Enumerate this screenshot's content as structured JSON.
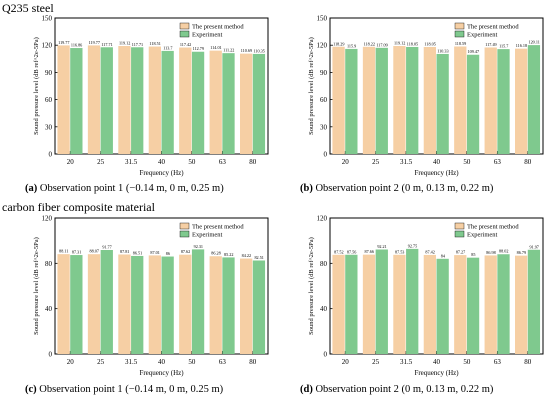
{
  "headings": {
    "top": "Q235 steel",
    "bottom": "carbon fiber composite material"
  },
  "captions": [
    {
      "letter": "(a)",
      "text": " Observation point 1 (−0.14 m, 0 m, 0.25 m)"
    },
    {
      "letter": "(b)",
      "text": " Observation point 2 (0 m, 0.13 m, 0.22 m)"
    },
    {
      "letter": "(c)",
      "text": " Observation point 1 (−0.14 m, 0 m, 0.25 m)"
    },
    {
      "letter": "(d)",
      "text": " Observation point 2 (0 m, 0.13 m, 0.22 m)"
    }
  ],
  "colors": {
    "present": "#F6CFA4",
    "experiment": "#7FC98E",
    "frame": "#000000"
  },
  "chart_data": [
    {
      "type": "bar",
      "categories": [
        "20",
        "25",
        "31.5",
        "40",
        "50",
        "63",
        "80"
      ],
      "series": [
        {
          "name": "The present method",
          "values": [
            119.77,
            119.77,
            119.12,
            118.51,
            117.42,
            114.01,
            110.69
          ],
          "labels": [
            "119.77",
            "119.77",
            "119.12",
            "118.51",
            "117.42",
            "114.01",
            "110.69"
          ]
        },
        {
          "name": "Experiment",
          "values": [
            116.86,
            117.71,
            117.71,
            113.7,
            112.79,
            111.22,
            110.35
          ],
          "labels": [
            "116.86",
            "117.71",
            "117.71",
            "113.7",
            "112.79",
            "111.22",
            "110.35"
          ]
        }
      ],
      "xlabel": "Frequency (Hz)",
      "ylabel": "Sound pressure level (dB ref^2e-5Pa)",
      "ylim": [
        0,
        150
      ],
      "yticks": [
        0,
        30,
        60,
        90,
        120,
        150
      ],
      "legend": "top-right"
    },
    {
      "type": "bar",
      "categories": [
        "20",
        "25",
        "31.5",
        "40",
        "50",
        "63",
        "80"
      ],
      "series": [
        {
          "name": "The present method",
          "values": [
            118.29,
            118.22,
            119.12,
            118.05,
            118.59,
            117.49,
            116.18
          ],
          "labels": [
            "118.29",
            "118.22",
            "119.12",
            "118.05",
            "118.59",
            "117.49",
            "116.18"
          ]
        },
        {
          "name": "Experiment",
          "values": [
            115.9,
            117.09,
            118.05,
            110.33,
            109.47,
            115.7,
            120.11
          ],
          "labels": [
            "115.9",
            "117.09",
            "118.05",
            "110.33",
            "109.47",
            "115.7",
            "120.11"
          ]
        }
      ],
      "xlabel": "Frequency (Hz)",
      "ylabel": "Sound pressure level (dB ref^2e-5Pa)",
      "ylim": [
        0,
        150
      ],
      "yticks": [
        0,
        30,
        60,
        90,
        120,
        150
      ],
      "legend": "top-right"
    },
    {
      "type": "bar",
      "categories": [
        "20",
        "25",
        "31.5",
        "40",
        "50",
        "63",
        "80"
      ],
      "series": [
        {
          "name": "The present method",
          "values": [
            88.11,
            88.07,
            87.81,
            87.01,
            87.62,
            86.28,
            84.22
          ],
          "labels": [
            "88.11",
            "88.07",
            "87.81",
            "87.01",
            "87.62",
            "86.28",
            "84.22"
          ]
        },
        {
          "name": "Experiment",
          "values": [
            87.31,
            91.77,
            86.51,
            86.0,
            92.31,
            85.22,
            82.51
          ],
          "labels": [
            "87.31",
            "91.77",
            "86.51",
            "86",
            "92.31",
            "85.22",
            "82.51"
          ]
        }
      ],
      "xlabel": "Frequency (Hz)",
      "ylabel": "Sound pressure level (dB ref^2e-5Pa)",
      "ylim": [
        0,
        120
      ],
      "yticks": [
        0,
        40,
        80,
        120
      ],
      "legend": "top-right"
    },
    {
      "type": "bar",
      "categories": [
        "20",
        "25",
        "31.5",
        "40",
        "50",
        "63",
        "80"
      ],
      "series": [
        {
          "name": "The present method",
          "values": [
            87.52,
            87.66,
            87.53,
            87.42,
            87.27,
            86.98,
            86.79
          ],
          "labels": [
            "87.52",
            "87.66",
            "87.53",
            "87.42",
            "87.27",
            "86.98",
            "86.79"
          ]
        },
        {
          "name": "Experiment",
          "values": [
            87.56,
            92.21,
            92.75,
            84.0,
            85.0,
            88.02,
            91.97
          ],
          "labels": [
            "87.56",
            "92.21",
            "92.75",
            "84",
            "85",
            "88.02",
            "91.97"
          ]
        }
      ],
      "xlabel": "Frequency (Hz)",
      "ylabel": "Sound pressure level (dB ref^2e-5Pa)",
      "ylim": [
        0,
        120
      ],
      "yticks": [
        0,
        40,
        80,
        120
      ],
      "legend": "top-right"
    }
  ]
}
